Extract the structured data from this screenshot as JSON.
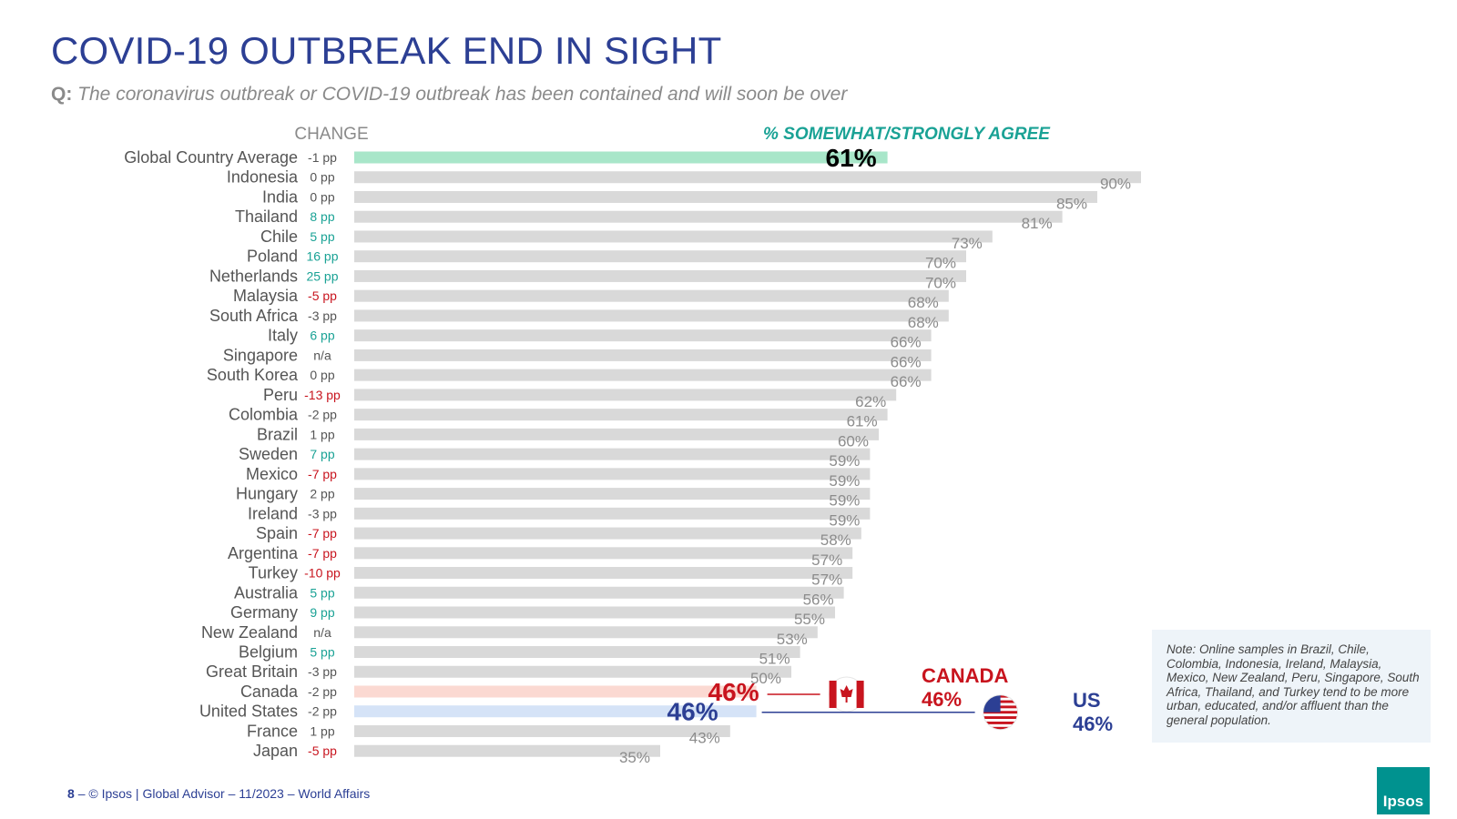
{
  "header": {
    "title": "COVID-19 OUTBREAK END IN SIGHT",
    "question_label": "Q:",
    "question_text": "The coronavirus outbreak or COVID-19 outbreak has been contained and will soon be over"
  },
  "chart_data": {
    "type": "bar",
    "orientation": "horizontal",
    "change_header": "CHANGE",
    "value_header": "% SOMEWHAT/STRONGLY AGREE",
    "xlim": [
      0,
      100
    ],
    "value_suffix": "%",
    "categories": [
      "Global Country Average",
      "Indonesia",
      "India",
      "Thailand",
      "Chile",
      "Poland",
      "Netherlands",
      "Malaysia",
      "South Africa",
      "Italy",
      "Singapore",
      "South Korea",
      "Peru",
      "Colombia",
      "Brazil",
      "Sweden",
      "Mexico",
      "Hungary",
      "Ireland",
      "Spain",
      "Argentina",
      "Turkey",
      "Australia",
      "Germany",
      "New Zealand",
      "Belgium",
      "Great Britain",
      "Canada",
      "United States",
      "France",
      "Japan"
    ],
    "values": [
      61,
      90,
      85,
      81,
      73,
      70,
      70,
      68,
      68,
      66,
      66,
      66,
      62,
      61,
      60,
      59,
      59,
      59,
      59,
      58,
      57,
      57,
      56,
      55,
      53,
      51,
      50,
      46,
      46,
      43,
      35
    ],
    "changes": [
      "-1 pp",
      "0 pp",
      "0 pp",
      "8 pp",
      "5 pp",
      "16 pp",
      "25 pp",
      "-5 pp",
      "-3 pp",
      "6 pp",
      "n/a",
      "0 pp",
      "-13 pp",
      "-2 pp",
      "1 pp",
      "7 pp",
      "-7 pp",
      "2 pp",
      "-3 pp",
      "-7 pp",
      "-7 pp",
      "-10 pp",
      "5 pp",
      "9 pp",
      "n/a",
      "5 pp",
      "-3 pp",
      "-2 pp",
      "-2 pp",
      "1 pp",
      "-5 pp"
    ],
    "change_direction": [
      "neutral",
      "neutral",
      "neutral",
      "up",
      "up",
      "up",
      "up",
      "down",
      "neutral",
      "up",
      "neutral",
      "neutral",
      "down",
      "neutral",
      "neutral",
      "up",
      "down",
      "neutral",
      "neutral",
      "down",
      "down",
      "down",
      "up",
      "up",
      "neutral",
      "up",
      "neutral",
      "neutral",
      "neutral",
      "neutral",
      "down"
    ],
    "highlight": {
      "Global Country Average": "global",
      "Canada": "canada",
      "United States": "us"
    },
    "colors": {
      "default_bar": "#d9d9d9",
      "global_bar": "#a8e6c9",
      "canada_bar": "#fbd9d2",
      "us_bar": "#d5e3f7",
      "default_value_text": "#8c8c8c",
      "change_up": "#1aa295",
      "change_down": "#c8141e",
      "change_neutral": "#555555",
      "canada": "#c8141e",
      "us": "#2c3f94"
    }
  },
  "callouts": {
    "canada_name": "CANADA",
    "canada_value": "46%",
    "us_name": "US",
    "us_value": "46%"
  },
  "note": "Note: Online samples in Brazil, Chile, Colombia, Indonesia, Ireland, Malaysia, Mexico, New Zealand, Peru, Singapore, South Africa, Thailand, and Turkey tend to be more urban, educated, and/or affluent than the general population.",
  "footer": {
    "page_number": "8",
    "text": "– © Ipsos | Global Advisor – 11/2023 – World Affairs"
  },
  "logo": {
    "text": "Ipsos"
  }
}
